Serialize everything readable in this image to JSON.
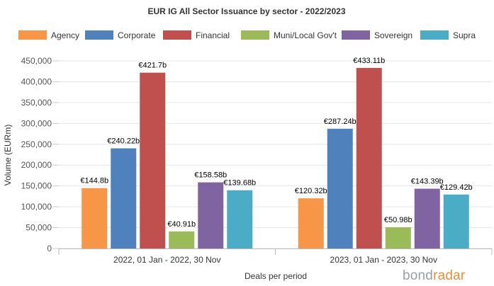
{
  "chart_data": {
    "type": "bar",
    "title": "EUR IG All Sector Issuance by sector - 2022/2023",
    "xlabel": "Deals per period",
    "ylabel": "Volume (EURm)",
    "ylim": [
      0,
      450000
    ],
    "yticks": [
      0,
      50000,
      100000,
      150000,
      200000,
      250000,
      300000,
      350000,
      400000,
      450000
    ],
    "ytick_labels": [
      "0",
      "50,000",
      "100,000",
      "150,000",
      "200,000",
      "250,000",
      "300,000",
      "350,000",
      "400,000",
      "450,000"
    ],
    "grid": true,
    "legend_position": "top",
    "categories": [
      "2022, 01 Jan - 2022, 30 Nov",
      "2023, 01 Jan - 2023, 30 Nov"
    ],
    "series": [
      {
        "name": "Agency",
        "color": "#f79646",
        "values": [
          144800,
          120320
        ],
        "labels": [
          "€144.8b",
          "€120.32b"
        ]
      },
      {
        "name": "Corporate",
        "color": "#4f81bd",
        "values": [
          240220,
          287240
        ],
        "labels": [
          "€240.22b",
          "€287.24b"
        ]
      },
      {
        "name": "Financial",
        "color": "#c0504d",
        "values": [
          421700,
          433110
        ],
        "labels": [
          "€421.7b",
          "€433.11b"
        ]
      },
      {
        "name": "Muni/Local Gov't",
        "color": "#9bbb59",
        "values": [
          40910,
          50980
        ],
        "labels": [
          "€40.91b",
          "€50.98b"
        ]
      },
      {
        "name": "Sovereign",
        "color": "#8064a2",
        "values": [
          158580,
          143390
        ],
        "labels": [
          "€158.58b",
          "€143.39b"
        ]
      },
      {
        "name": "Supra",
        "color": "#4bacc6",
        "values": [
          139680,
          129420
        ],
        "labels": [
          "€139.68b",
          "€129.42b"
        ]
      }
    ]
  },
  "branding": {
    "logo_part1": "bond",
    "logo_part2": "radar"
  }
}
